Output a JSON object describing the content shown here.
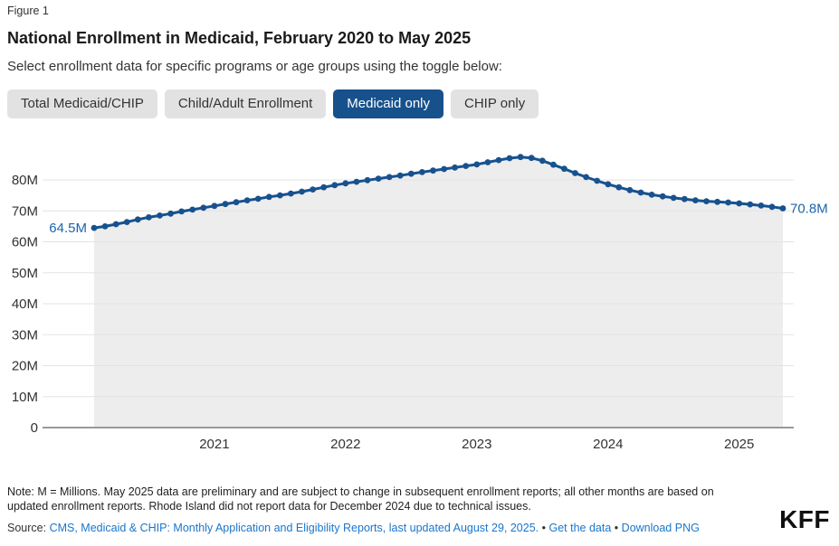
{
  "header": {
    "figure_label": "Figure 1",
    "title": "National Enrollment in Medicaid, February 2020 to May 2025",
    "subtitle": "Select enrollment data for specific programs or age groups using the toggle below:"
  },
  "toggles": {
    "buttons": [
      {
        "label": "Total Medicaid/CHIP",
        "selected": false
      },
      {
        "label": "Child/Adult Enrollment",
        "selected": false
      },
      {
        "label": "Medicaid only",
        "selected": true
      },
      {
        "label": "CHIP only",
        "selected": false
      }
    ]
  },
  "chart_data": {
    "type": "line",
    "title": "National Enrollment in Medicaid, February 2020 to May 2025",
    "series_name": "Medicaid only enrollment",
    "unit": "millions",
    "ylim": [
      0,
      88
    ],
    "grid": true,
    "first_point_label": "64.5M",
    "last_point_label": "70.8M",
    "y_ticks": [
      {
        "value": 0,
        "label": "0"
      },
      {
        "value": 10,
        "label": "10M"
      },
      {
        "value": 20,
        "label": "20M"
      },
      {
        "value": 30,
        "label": "30M"
      },
      {
        "value": 40,
        "label": "40M"
      },
      {
        "value": 50,
        "label": "50M"
      },
      {
        "value": 60,
        "label": "60M"
      },
      {
        "value": 70,
        "label": "70M"
      },
      {
        "value": 80,
        "label": "80M"
      }
    ],
    "x_ticks": [
      {
        "index": 11,
        "label": "2021"
      },
      {
        "index": 23,
        "label": "2022"
      },
      {
        "index": 35,
        "label": "2023"
      },
      {
        "index": 47,
        "label": "2024"
      },
      {
        "index": 59,
        "label": "2025"
      }
    ],
    "months": [
      "Feb 2020",
      "Mar 2020",
      "Apr 2020",
      "May 2020",
      "Jun 2020",
      "Jul 2020",
      "Aug 2020",
      "Sep 2020",
      "Oct 2020",
      "Nov 2020",
      "Dec 2020",
      "Jan 2021",
      "Feb 2021",
      "Mar 2021",
      "Apr 2021",
      "May 2021",
      "Jun 2021",
      "Jul 2021",
      "Aug 2021",
      "Sep 2021",
      "Oct 2021",
      "Nov 2021",
      "Dec 2021",
      "Jan 2022",
      "Feb 2022",
      "Mar 2022",
      "Apr 2022",
      "May 2022",
      "Jun 2022",
      "Jul 2022",
      "Aug 2022",
      "Sep 2022",
      "Oct 2022",
      "Nov 2022",
      "Dec 2022",
      "Jan 2023",
      "Feb 2023",
      "Mar 2023",
      "Apr 2023",
      "May 2023",
      "Jun 2023",
      "Jul 2023",
      "Aug 2023",
      "Sep 2023",
      "Oct 2023",
      "Nov 2023",
      "Dec 2023",
      "Jan 2024",
      "Feb 2024",
      "Mar 2024",
      "Apr 2024",
      "May 2024",
      "Jun 2024",
      "Jul 2024",
      "Aug 2024",
      "Sep 2024",
      "Oct 2024",
      "Nov 2024",
      "Dec 2024",
      "Jan 2025",
      "Feb 2025",
      "Mar 2025",
      "Apr 2025",
      "May 2025"
    ],
    "values": [
      64.5,
      65.0,
      65.7,
      66.4,
      67.2,
      67.9,
      68.5,
      69.1,
      69.8,
      70.4,
      71.0,
      71.6,
      72.2,
      72.8,
      73.4,
      73.9,
      74.5,
      75.0,
      75.6,
      76.2,
      76.9,
      77.6,
      78.3,
      78.9,
      79.4,
      79.9,
      80.4,
      80.9,
      81.4,
      82.0,
      82.5,
      83.0,
      83.5,
      84.0,
      84.5,
      85.0,
      85.7,
      86.4,
      87.0,
      87.4,
      87.1,
      86.2,
      84.9,
      83.6,
      82.2,
      80.9,
      79.7,
      78.6,
      77.6,
      76.7,
      75.9,
      75.2,
      74.7,
      74.2,
      73.8,
      73.4,
      73.1,
      72.9,
      72.7,
      72.4,
      72.1,
      71.7,
      71.3,
      70.8
    ]
  },
  "footer": {
    "note": "Note: M = Millions. May 2025 data are preliminary and are subject to change in subsequent enrollment reports; all other months are based on updated enrollment reports. Rhode Island did not report data for December 2024 due to technical issues.",
    "source_prefix": "Source: ",
    "source_link": "CMS, Medicaid & CHIP: Monthly Application and Eligibility Reports, last updated August 29, 2025.",
    "separator": "•",
    "get_data_link": "Get the data",
    "download_link": "Download PNG",
    "logo": "KFF"
  },
  "colors": {
    "line": "#17528e",
    "value_label": "#1c64ab",
    "area_fill": "#ededed",
    "gridline": "#e3e3e3",
    "axis": "#999999",
    "text": "#333333",
    "active_button_bg": "#17518c",
    "button_bg": "#e2e2e2",
    "link_blue": "#1a76cc"
  }
}
